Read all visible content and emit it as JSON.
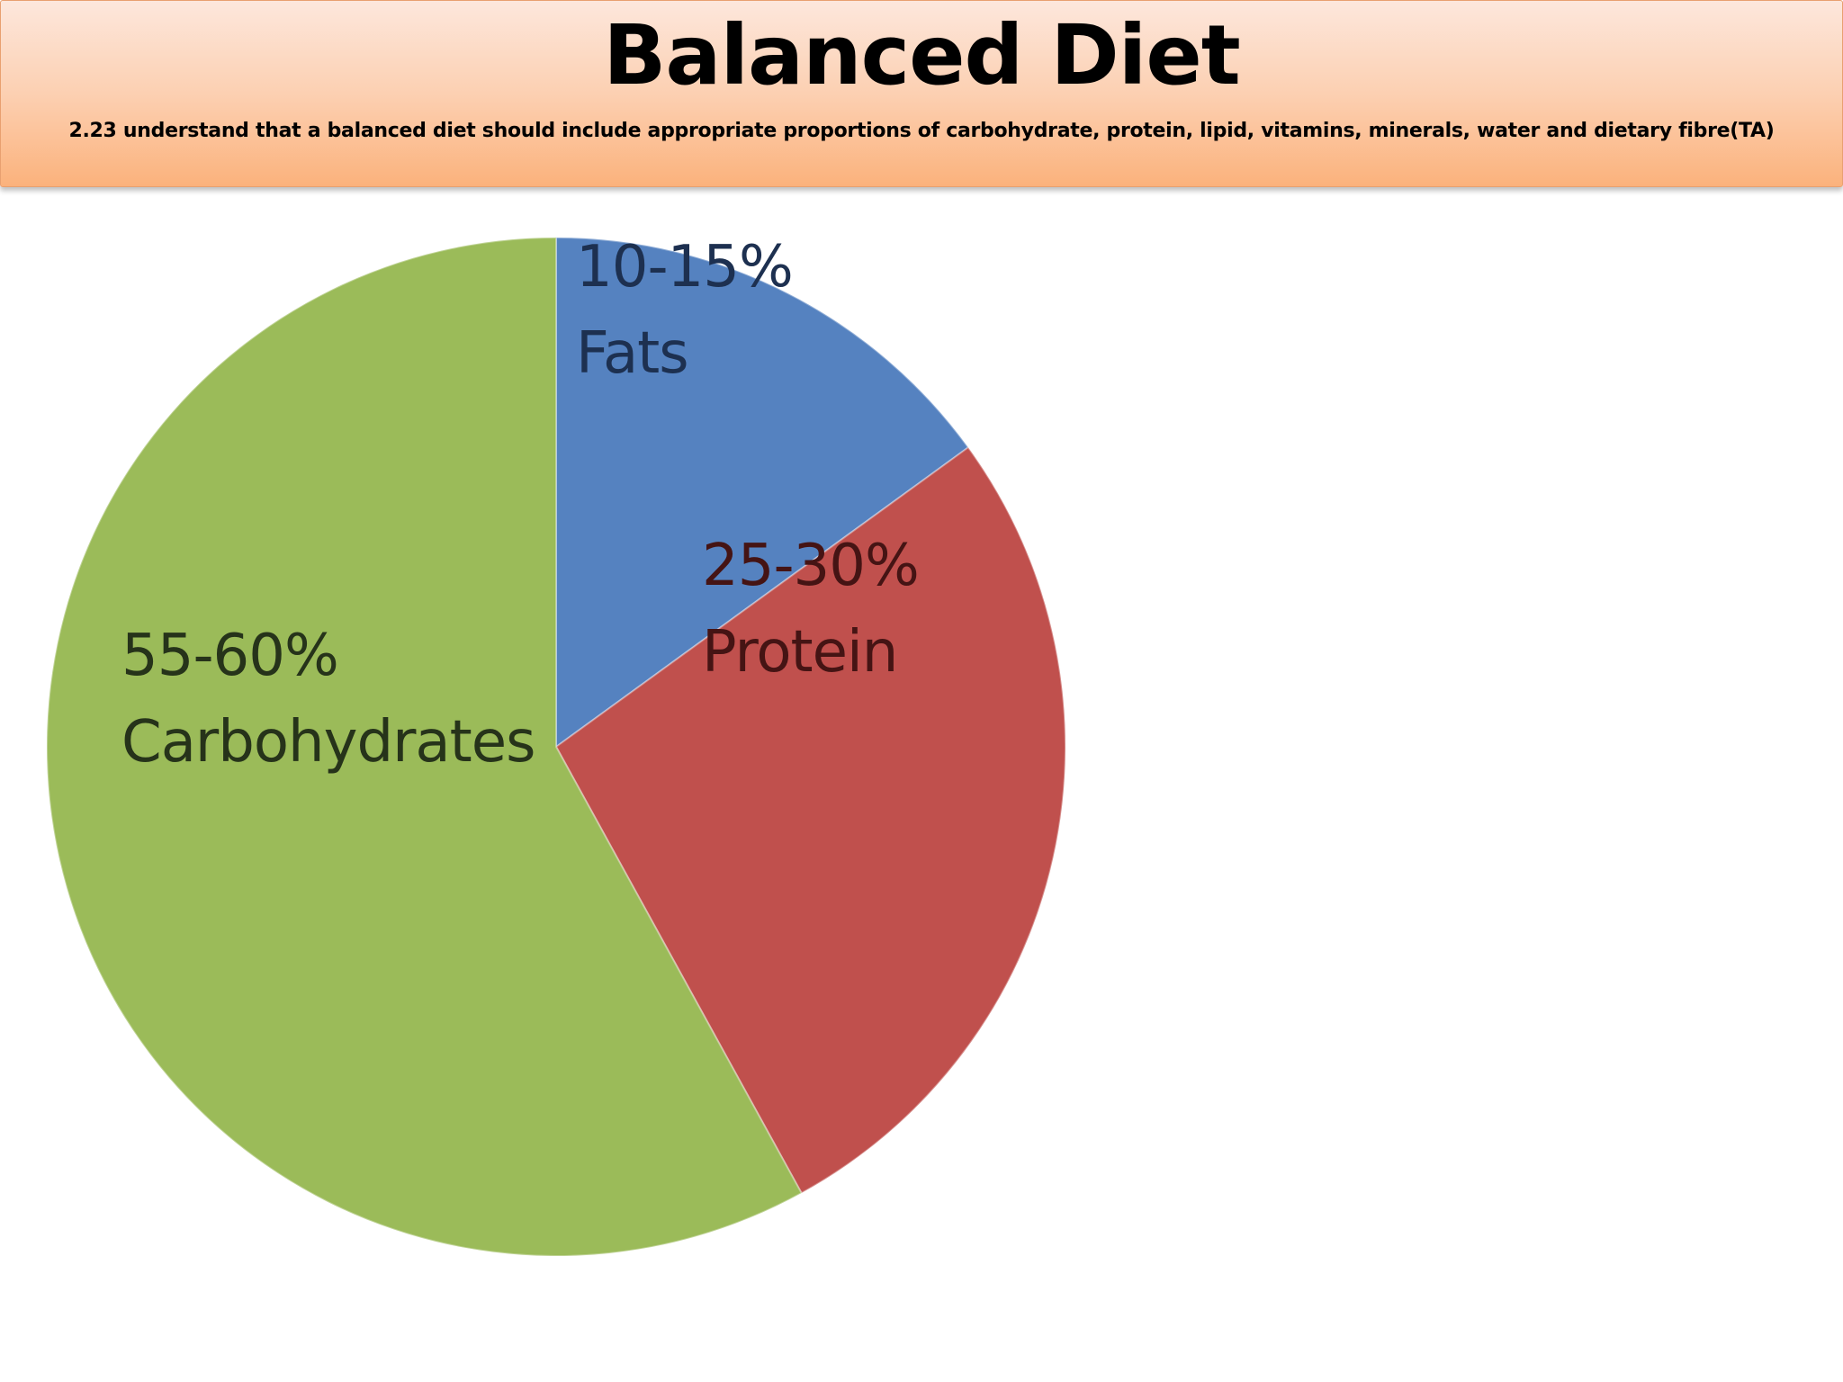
{
  "slide": {
    "title": "Balanced Diet",
    "subtitle": "2.23 understand that a balanced diet should include appropriate proportions of carbohydrate, protein, lipid, vitamins, minerals, water and dietary fibre(TA)"
  },
  "chart_data": {
    "type": "pie",
    "slices": [
      {
        "name": "Fats",
        "range": "10-15%",
        "value": 15,
        "color": "#5582c0",
        "label_color": "#1d3050"
      },
      {
        "name": "Protein",
        "range": "25-30%",
        "value": 27,
        "color": "#c0504d",
        "label_color": "#451414"
      },
      {
        "name": "Carbohydrates",
        "range": "55-60%",
        "value": 58,
        "color": "#9bbb59",
        "label_color": "#26331a"
      }
    ],
    "start": "12 o'clock",
    "direction": "clockwise",
    "legend": "none"
  }
}
